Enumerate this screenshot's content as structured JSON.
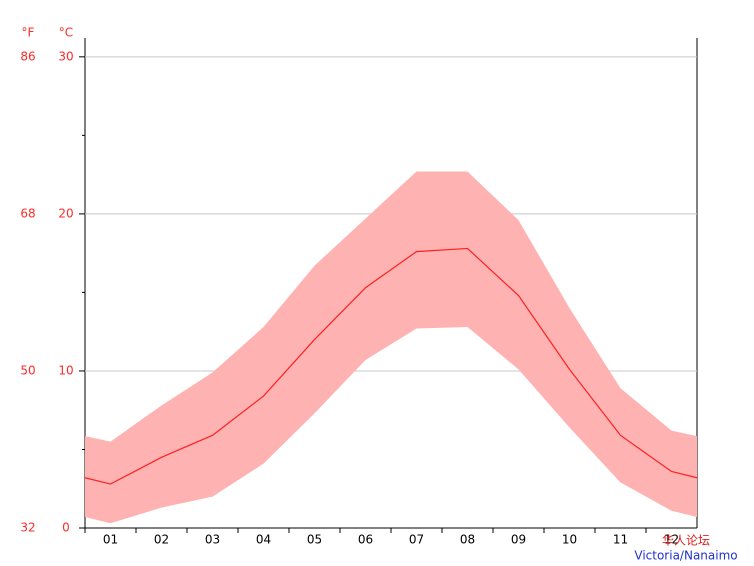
{
  "chart_data": {
    "type": "climate-band",
    "y_unit_label": "°C",
    "y2_unit_label": "°F",
    "categories": [
      "01",
      "02",
      "03",
      "04",
      "05",
      "06",
      "07",
      "08",
      "09",
      "10",
      "11",
      "12"
    ],
    "series": [
      {
        "color": "#ff2020",
        "values": [
          2.8,
          4.5,
          5.9,
          8.4,
          12.0,
          15.3,
          17.6,
          17.8,
          14.8,
          10.1,
          5.9,
          3.6
        ]
      }
    ],
    "band": {
      "color": "#ffb2b2",
      "upper": [
        5.5,
        7.8,
        9.9,
        12.8,
        16.7,
        19.7,
        22.7,
        22.7,
        19.6,
        14.0,
        8.9,
        6.2
      ],
      "lower": [
        0.3,
        1.3,
        2.0,
        4.1,
        7.3,
        10.7,
        12.7,
        12.8,
        10.1,
        6.4,
        2.9,
        1.1
      ]
    },
    "ylim": [
      0,
      31.2
    ],
    "yticks": [
      0,
      10,
      20,
      30
    ],
    "yminorticks": [
      5,
      15,
      25
    ],
    "y2lim": [
      32,
      88.16
    ],
    "y2ticks": [
      32,
      50,
      68,
      86
    ],
    "grid": true,
    "watermark": {
      "line1": "华人论坛",
      "line2": "Victoria/Nanaimo"
    }
  }
}
